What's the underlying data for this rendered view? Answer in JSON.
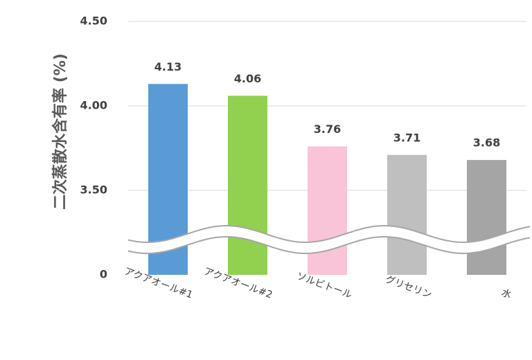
{
  "chart_data": {
    "type": "bar",
    "y_label": "二次蒸散水含有率 (%)",
    "categories": [
      "アクアオール#1",
      "アクアオール#2",
      "ソルビトール",
      "グリセリン",
      "水"
    ],
    "values": [
      4.13,
      4.06,
      3.76,
      3.71,
      3.68
    ],
    "colors": [
      "#5b9bd5",
      "#92d050",
      "#f9c3d8",
      "#bfbfbf",
      "#a5a5a5"
    ],
    "ylim": [
      0,
      4.5
    ],
    "yticks": [
      0,
      {
        "value": 3.5,
        "label": "3.50"
      },
      {
        "value": 4.0,
        "label": "4.00"
      },
      {
        "value": 4.5,
        "label": "4.50"
      }
    ],
    "axis_break": true,
    "grid": true
  }
}
